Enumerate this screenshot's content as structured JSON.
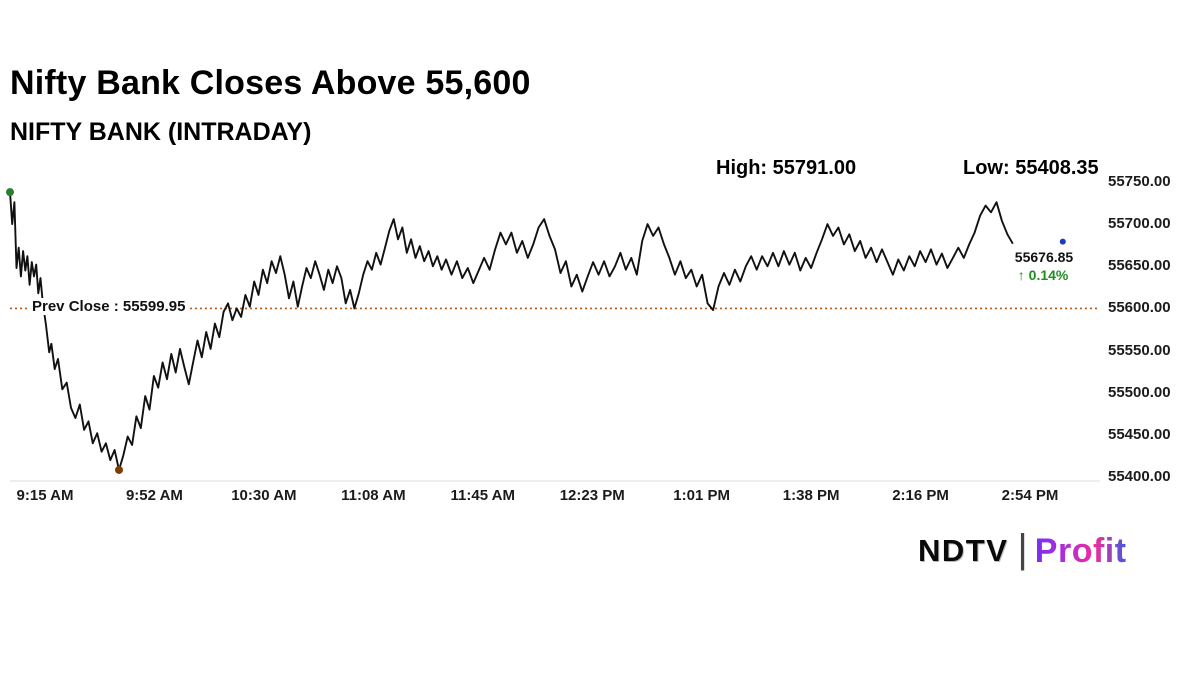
{
  "header": {
    "title": "Nifty Bank Closes Above 55,600",
    "subtitle": "NIFTY BANK (INTRADAY)",
    "high_label": "High: 55791.00",
    "low_label": "Low: 55408.35"
  },
  "chart_data": {
    "type": "line",
    "title": "NIFTY BANK (INTRADAY)",
    "high": 55791.0,
    "low": 55408.35,
    "prev_close": 55599.95,
    "prev_close_label": "Prev Close : 55599.95",
    "last_price": 55676.85,
    "last_price_label": "55676.85",
    "change_percent_label": "↑ 0.14%",
    "y_min": 55400,
    "y_max": 55750,
    "y_ticks": [
      "55750.00",
      "55700.00",
      "55650.00",
      "55600.00",
      "55550.00",
      "55500.00",
      "55450.00",
      "55400.00"
    ],
    "x_ticks": [
      "9:15 AM",
      "9:52 AM",
      "10:30 AM",
      "11:08 AM",
      "11:45 AM",
      "12:23 PM",
      "1:01 PM",
      "1:38 PM",
      "2:16 PM",
      "2:54 PM"
    ],
    "line_color": "#111111",
    "prev_close_color": "#c2571a",
    "open_marker_color": "#2e7d32",
    "low_marker_color": "#7b3f00",
    "end_marker_color": "#1a3bc1",
    "change_color": "#1e8e1e",
    "points": [
      [
        0.0,
        55738
      ],
      [
        0.002,
        55700
      ],
      [
        0.004,
        55726
      ],
      [
        0.006,
        55648
      ],
      [
        0.008,
        55672
      ],
      [
        0.01,
        55638
      ],
      [
        0.012,
        55668
      ],
      [
        0.014,
        55645
      ],
      [
        0.016,
        55662
      ],
      [
        0.018,
        55628
      ],
      [
        0.02,
        55655
      ],
      [
        0.022,
        55638
      ],
      [
        0.024,
        55652
      ],
      [
        0.026,
        55618
      ],
      [
        0.028,
        55636
      ],
      [
        0.03,
        55608
      ],
      [
        0.033,
        55580
      ],
      [
        0.036,
        55548
      ],
      [
        0.038,
        55558
      ],
      [
        0.041,
        55528
      ],
      [
        0.044,
        55540
      ],
      [
        0.048,
        55504
      ],
      [
        0.052,
        55512
      ],
      [
        0.056,
        55482
      ],
      [
        0.06,
        55470
      ],
      [
        0.064,
        55486
      ],
      [
        0.068,
        55456
      ],
      [
        0.072,
        55466
      ],
      [
        0.076,
        55440
      ],
      [
        0.08,
        55452
      ],
      [
        0.084,
        55430
      ],
      [
        0.088,
        55440
      ],
      [
        0.092,
        55420
      ],
      [
        0.096,
        55432
      ],
      [
        0.1,
        55408.35
      ],
      [
        0.104,
        55426
      ],
      [
        0.108,
        55448
      ],
      [
        0.112,
        55438
      ],
      [
        0.116,
        55472
      ],
      [
        0.12,
        55458
      ],
      [
        0.124,
        55496
      ],
      [
        0.128,
        55480
      ],
      [
        0.132,
        55520
      ],
      [
        0.136,
        55506
      ],
      [
        0.14,
        55536
      ],
      [
        0.144,
        55516
      ],
      [
        0.148,
        55546
      ],
      [
        0.152,
        55524
      ],
      [
        0.156,
        55552
      ],
      [
        0.16,
        55530
      ],
      [
        0.164,
        55510
      ],
      [
        0.168,
        55536
      ],
      [
        0.172,
        55562
      ],
      [
        0.176,
        55542
      ],
      [
        0.18,
        55572
      ],
      [
        0.184,
        55552
      ],
      [
        0.188,
        55582
      ],
      [
        0.192,
        55566
      ],
      [
        0.196,
        55596
      ],
      [
        0.2,
        55606
      ],
      [
        0.204,
        55586
      ],
      [
        0.208,
        55600
      ],
      [
        0.212,
        55590
      ],
      [
        0.216,
        55616
      ],
      [
        0.22,
        55602
      ],
      [
        0.224,
        55632
      ],
      [
        0.228,
        55616
      ],
      [
        0.232,
        55646
      ],
      [
        0.236,
        55630
      ],
      [
        0.24,
        55656
      ],
      [
        0.244,
        55642
      ],
      [
        0.248,
        55662
      ],
      [
        0.252,
        55640
      ],
      [
        0.256,
        55612
      ],
      [
        0.26,
        55632
      ],
      [
        0.264,
        55602
      ],
      [
        0.268,
        55626
      ],
      [
        0.272,
        55648
      ],
      [
        0.276,
        55636
      ],
      [
        0.28,
        55656
      ],
      [
        0.284,
        55640
      ],
      [
        0.288,
        55622
      ],
      [
        0.292,
        55646
      ],
      [
        0.296,
        55630
      ],
      [
        0.3,
        55650
      ],
      [
        0.304,
        55636
      ],
      [
        0.308,
        55606
      ],
      [
        0.312,
        55622
      ],
      [
        0.316,
        55600
      ],
      [
        0.32,
        55618
      ],
      [
        0.324,
        55640
      ],
      [
        0.328,
        55656
      ],
      [
        0.332,
        55646
      ],
      [
        0.336,
        55666
      ],
      [
        0.34,
        55652
      ],
      [
        0.344,
        55672
      ],
      [
        0.348,
        55692
      ],
      [
        0.352,
        55706
      ],
      [
        0.356,
        55682
      ],
      [
        0.36,
        55696
      ],
      [
        0.364,
        55666
      ],
      [
        0.368,
        55682
      ],
      [
        0.372,
        55660
      ],
      [
        0.376,
        55674
      ],
      [
        0.38,
        55656
      ],
      [
        0.384,
        55668
      ],
      [
        0.388,
        55650
      ],
      [
        0.392,
        55662
      ],
      [
        0.396,
        55646
      ],
      [
        0.4,
        55658
      ],
      [
        0.405,
        55640
      ],
      [
        0.41,
        55656
      ],
      [
        0.415,
        55636
      ],
      [
        0.42,
        55648
      ],
      [
        0.425,
        55630
      ],
      [
        0.43,
        55645
      ],
      [
        0.435,
        55660
      ],
      [
        0.44,
        55646
      ],
      [
        0.445,
        55670
      ],
      [
        0.45,
        55690
      ],
      [
        0.455,
        55676
      ],
      [
        0.46,
        55690
      ],
      [
        0.465,
        55666
      ],
      [
        0.47,
        55680
      ],
      [
        0.475,
        55660
      ],
      [
        0.48,
        55676
      ],
      [
        0.485,
        55696
      ],
      [
        0.49,
        55706
      ],
      [
        0.495,
        55686
      ],
      [
        0.5,
        55670
      ],
      [
        0.505,
        55642
      ],
      [
        0.51,
        55656
      ],
      [
        0.515,
        55626
      ],
      [
        0.52,
        55640
      ],
      [
        0.525,
        55620
      ],
      [
        0.53,
        55638
      ],
      [
        0.535,
        55655
      ],
      [
        0.54,
        55640
      ],
      [
        0.545,
        55656
      ],
      [
        0.55,
        55638
      ],
      [
        0.555,
        55650
      ],
      [
        0.56,
        55666
      ],
      [
        0.565,
        55646
      ],
      [
        0.57,
        55660
      ],
      [
        0.575,
        55640
      ],
      [
        0.58,
        55680
      ],
      [
        0.585,
        55700
      ],
      [
        0.59,
        55686
      ],
      [
        0.595,
        55696
      ],
      [
        0.6,
        55676
      ],
      [
        0.605,
        55660
      ],
      [
        0.61,
        55640
      ],
      [
        0.615,
        55656
      ],
      [
        0.62,
        55636
      ],
      [
        0.625,
        55646
      ],
      [
        0.63,
        55626
      ],
      [
        0.635,
        55640
      ],
      [
        0.64,
        55606
      ],
      [
        0.645,
        55598
      ],
      [
        0.65,
        55626
      ],
      [
        0.655,
        55642
      ],
      [
        0.66,
        55628
      ],
      [
        0.665,
        55646
      ],
      [
        0.67,
        55632
      ],
      [
        0.675,
        55650
      ],
      [
        0.68,
        55662
      ],
      [
        0.685,
        55646
      ],
      [
        0.69,
        55662
      ],
      [
        0.695,
        55650
      ],
      [
        0.7,
        55666
      ],
      [
        0.705,
        55650
      ],
      [
        0.71,
        55668
      ],
      [
        0.715,
        55652
      ],
      [
        0.72,
        55666
      ],
      [
        0.725,
        55645
      ],
      [
        0.73,
        55660
      ],
      [
        0.735,
        55648
      ],
      [
        0.74,
        55666
      ],
      [
        0.745,
        55682
      ],
      [
        0.75,
        55700
      ],
      [
        0.755,
        55686
      ],
      [
        0.76,
        55696
      ],
      [
        0.765,
        55676
      ],
      [
        0.77,
        55688
      ],
      [
        0.775,
        55668
      ],
      [
        0.78,
        55680
      ],
      [
        0.785,
        55660
      ],
      [
        0.79,
        55672
      ],
      [
        0.795,
        55655
      ],
      [
        0.8,
        55670
      ],
      [
        0.805,
        55655
      ],
      [
        0.81,
        55640
      ],
      [
        0.815,
        55658
      ],
      [
        0.82,
        55645
      ],
      [
        0.825,
        55662
      ],
      [
        0.83,
        55650
      ],
      [
        0.835,
        55668
      ],
      [
        0.84,
        55655
      ],
      [
        0.845,
        55670
      ],
      [
        0.85,
        55652
      ],
      [
        0.855,
        55665
      ],
      [
        0.86,
        55648
      ],
      [
        0.865,
        55660
      ],
      [
        0.87,
        55672
      ],
      [
        0.875,
        55660
      ],
      [
        0.88,
        55676
      ],
      [
        0.885,
        55690
      ],
      [
        0.89,
        55710
      ],
      [
        0.895,
        55722
      ],
      [
        0.9,
        55714
      ],
      [
        0.905,
        55726
      ],
      [
        0.91,
        55704
      ],
      [
        0.915,
        55688
      ],
      [
        0.92,
        55676.85
      ]
    ]
  },
  "footer": {
    "brand_left": "NDTV",
    "separator": "|",
    "brand_right": "Profit"
  }
}
